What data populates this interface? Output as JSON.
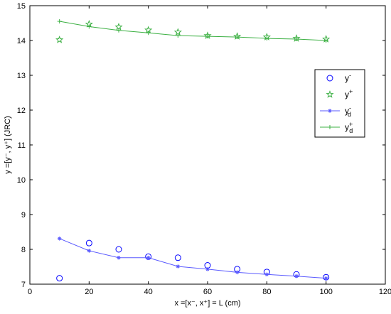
{
  "chart_data": {
    "type": "line",
    "xlabel": "x =[x⁻, x⁺] = L (cm)",
    "ylabel": "y =[y⁻, y⁺] (JRC)",
    "xlim": [
      0,
      120
    ],
    "ylim": [
      7,
      15
    ],
    "xticks": [
      0,
      20,
      40,
      60,
      80,
      100,
      120
    ],
    "yticks": [
      7,
      8,
      9,
      10,
      11,
      12,
      13,
      14,
      15
    ],
    "grid": false,
    "legend_position": "right",
    "series": [
      {
        "name": "y⁻",
        "legend_base": "y",
        "legend_sup": "-",
        "legend_sub": "",
        "style": "markers",
        "marker": "circle",
        "color": "#0000ff",
        "x": [
          10,
          20,
          30,
          40,
          50,
          60,
          70,
          80,
          90,
          100
        ],
        "y": [
          7.17,
          8.18,
          8.0,
          7.79,
          7.76,
          7.54,
          7.43,
          7.35,
          7.28,
          7.2
        ]
      },
      {
        "name": "y⁺",
        "legend_base": "y",
        "legend_sup": "+",
        "legend_sub": "",
        "style": "markers",
        "marker": "pentagram",
        "color": "#3cb043",
        "x": [
          10,
          20,
          30,
          40,
          50,
          60,
          70,
          80,
          90,
          100
        ],
        "y": [
          14.02,
          14.47,
          14.39,
          14.3,
          14.24,
          14.14,
          14.12,
          14.1,
          14.06,
          14.04
        ]
      },
      {
        "name": "y⁻_d",
        "legend_base": "y",
        "legend_sup": "-",
        "legend_sub": "d",
        "style": "line",
        "marker": "asterisk",
        "color": "#5a5aff",
        "x": [
          10,
          20,
          30,
          40,
          50,
          60,
          70,
          80,
          90,
          100
        ],
        "y": [
          8.31,
          7.96,
          7.76,
          7.76,
          7.51,
          7.43,
          7.34,
          7.28,
          7.23,
          7.17
        ]
      },
      {
        "name": "y⁺_d",
        "legend_base": "y",
        "legend_sup": "+",
        "legend_sub": "d",
        "style": "line",
        "marker": "plus",
        "color": "#3cb043",
        "x": [
          10,
          20,
          30,
          40,
          50,
          60,
          70,
          80,
          90,
          100
        ],
        "y": [
          14.55,
          14.4,
          14.29,
          14.22,
          14.14,
          14.12,
          14.1,
          14.06,
          14.04,
          14.0
        ]
      }
    ]
  }
}
